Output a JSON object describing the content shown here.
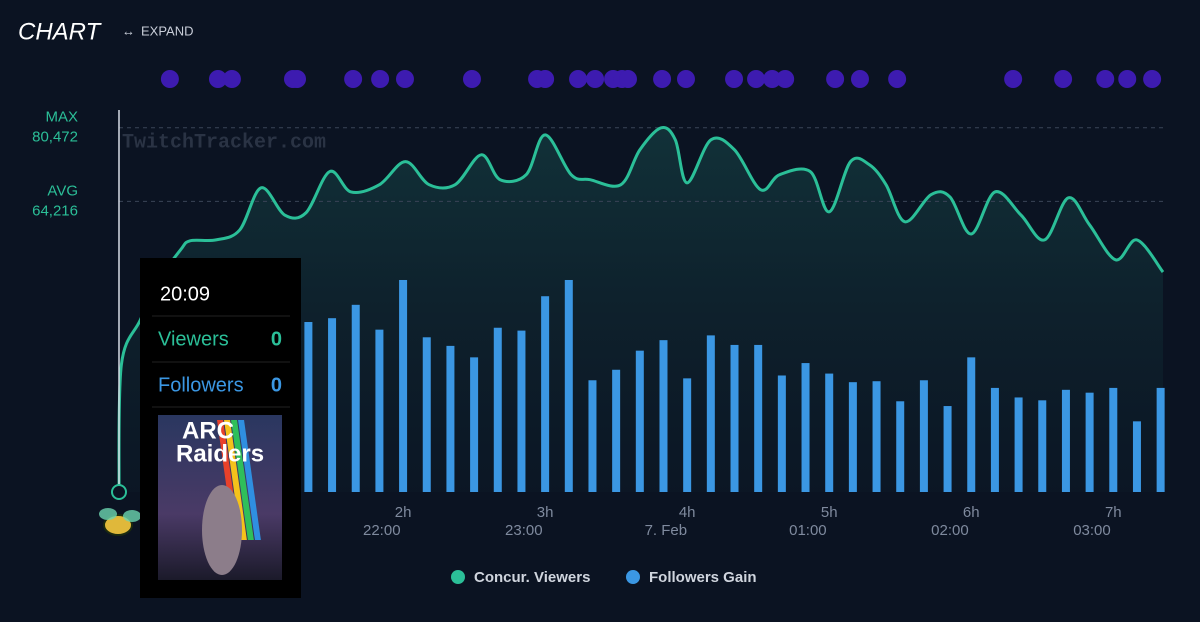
{
  "header": {
    "title": "CHART",
    "expand": "EXPAND",
    "watermark": "TwitchTracker.com"
  },
  "chart_data": {
    "type": "combo",
    "xlim": [
      0,
      441
    ],
    "ylim": [
      0,
      84400
    ],
    "y2lim": [
      0,
      400
    ],
    "xticks": [
      {
        "value": 120,
        "label": "2h"
      },
      {
        "value": 180,
        "label": "3h"
      },
      {
        "value": 240,
        "label": "4h"
      },
      {
        "value": 300,
        "label": "5h"
      },
      {
        "value": 360,
        "label": "6h"
      },
      {
        "value": 420,
        "label": "7h"
      }
    ],
    "xticks_clock": [
      {
        "value": 111,
        "label": "22:00"
      },
      {
        "value": 171,
        "label": "23:00"
      },
      {
        "value": 231,
        "label": "7. Feb"
      },
      {
        "value": 291,
        "label": "01:00"
      },
      {
        "value": 351,
        "label": "02:00"
      },
      {
        "value": 411,
        "label": "03:00"
      }
    ],
    "reference_lines": [
      {
        "name": "MAX",
        "value": 80472,
        "value_label": "80,472"
      },
      {
        "name": "AVG",
        "value": 64216,
        "value_label": "64,216"
      }
    ],
    "events": {
      "color": "#3d1bb0",
      "x": [
        21.5,
        41.8,
        47.7,
        73.5,
        75.2,
        98.9,
        110.3,
        120.8,
        149.1,
        176.6,
        180,
        193.9,
        201.1,
        208.7,
        212.5,
        215,
        229.4,
        239.5,
        259.8,
        269.1,
        275.9,
        281.4,
        302.5,
        313,
        328.7,
        377.7,
        398.8,
        416.6,
        425.9,
        436.4
      ]
    },
    "series": [
      {
        "name": "Concur. Viewers",
        "type": "line",
        "color": "#2bbf98",
        "x": [
          0,
          1,
          9,
          17,
          26,
          30,
          41,
          51,
          60,
          70,
          79,
          89,
          98,
          110,
          121,
          131,
          142,
          153,
          161,
          172,
          180,
          191,
          199,
          212,
          220,
          229,
          235,
          240,
          250,
          260,
          271,
          279,
          292,
          300,
          309,
          317,
          324,
          332,
          343,
          351,
          360,
          370,
          381,
          391,
          401,
          410,
          421,
          430,
          441
        ],
        "values": [
          0,
          28100,
          38000,
          46900,
          53500,
          55500,
          55700,
          57900,
          67200,
          61200,
          61700,
          70800,
          66300,
          67900,
          73000,
          67900,
          67900,
          74500,
          69000,
          70100,
          78900,
          70100,
          69000,
          67900,
          75600,
          80472,
          77800,
          68300,
          77800,
          75600,
          66800,
          70100,
          70800,
          61900,
          73000,
          72300,
          67900,
          59700,
          65700,
          65200,
          57000,
          66300,
          61200,
          55700,
          65000,
          59000,
          51300,
          55700,
          48600
        ]
      },
      {
        "name": "Followers Gain",
        "type": "bar",
        "axis": "y2",
        "color": "#3b97e3",
        "x": [
          80,
          90,
          100,
          110,
          120,
          130,
          140,
          150,
          160,
          170,
          180,
          190,
          200,
          210,
          220,
          230,
          240,
          250,
          260,
          270,
          280,
          290,
          300,
          310,
          320,
          330,
          340,
          350,
          360,
          370,
          380,
          390,
          400,
          410,
          420,
          430,
          440
        ],
        "values": [
          178,
          182,
          196,
          170,
          222,
          162,
          153,
          141,
          172,
          169,
          205,
          222,
          117,
          128,
          148,
          159,
          119,
          164,
          154,
          154,
          122,
          135,
          124,
          115,
          116,
          95,
          117,
          90,
          141,
          109,
          99,
          96,
          107,
          104,
          109,
          74,
          109
        ]
      }
    ]
  },
  "tooltip": {
    "time": "20:09",
    "rows": [
      {
        "name": "Viewers",
        "value": 0
      },
      {
        "name": "Followers",
        "value": 0
      }
    ],
    "game": [
      "ARC",
      "Raiders"
    ]
  }
}
